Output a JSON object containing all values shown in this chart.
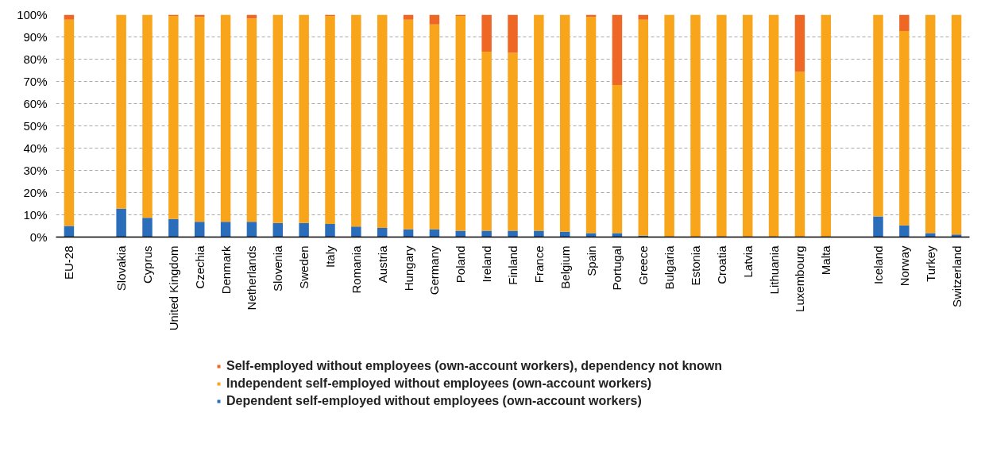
{
  "chart_data": {
    "type": "bar",
    "stacked": true,
    "categories": [
      "EU-28",
      null,
      "Slovakia",
      "Cyprus",
      "United Kingdom",
      "Czechia",
      "Denmark",
      "Netherlands",
      "Slovenia",
      "Sweden",
      "Italy",
      "Romania",
      "Austria",
      "Hungary",
      "Germany",
      "Poland",
      "Ireland",
      "Finland",
      "France",
      "Belgium",
      "Spain",
      "Portugal",
      "Greece",
      "Bulgaria",
      "Estonia",
      "Croatia",
      "Latvia",
      "Lithuania",
      "Luxembourg",
      "Malta",
      null,
      "Iceland",
      "Norway",
      "Turkey",
      "Switzerland"
    ],
    "series": [
      {
        "name": "Dependent self-employed without employees (own-account workers)",
        "color": "#2a6ebb",
        "values": [
          5.0,
          null,
          12.8,
          8.7,
          8.1,
          6.9,
          6.9,
          6.9,
          6.3,
          6.3,
          5.9,
          4.7,
          4.1,
          3.5,
          3.5,
          2.9,
          2.9,
          2.9,
          2.9,
          2.4,
          1.8,
          1.8,
          0.6,
          0,
          0,
          0,
          0,
          0,
          0,
          0,
          null,
          9.3,
          5.3,
          1.8,
          1.2
        ]
      },
      {
        "name": "Independent self-employed without employees (own-account workers)",
        "color": "#f8a51b",
        "values": [
          92.8,
          null,
          87.2,
          91.3,
          91.4,
          92.1,
          93.1,
          91.4,
          93.7,
          93.7,
          93.6,
          95.3,
          95.9,
          94.3,
          92.1,
          96.6,
          80.5,
          80.0,
          97.1,
          97.6,
          97.2,
          66.6,
          97.2,
          100,
          100,
          100,
          100,
          100,
          74.3,
          100,
          null,
          90.7,
          87.4,
          98.2,
          98.8
        ]
      },
      {
        "name": "Self-employed without employees (own-account workers), dependency not known",
        "color": "#ee6725",
        "values": [
          2.2,
          null,
          0,
          0,
          0.5,
          1.0,
          0,
          1.7,
          0,
          0,
          0.5,
          0,
          0,
          2.2,
          4.4,
          0.5,
          16.6,
          17.1,
          0,
          0,
          1.0,
          31.6,
          2.2,
          0,
          0,
          0,
          0,
          0,
          25.7,
          0,
          null,
          0,
          7.3,
          0,
          0
        ]
      }
    ],
    "ylim": [
      0,
      100
    ],
    "yticks": [
      {
        "value": 0,
        "label": "0%"
      },
      {
        "value": 10,
        "label": "10%"
      },
      {
        "value": 20,
        "label": "20%"
      },
      {
        "value": 30,
        "label": "30%"
      },
      {
        "value": 40,
        "label": "40%"
      },
      {
        "value": 50,
        "label": "50%"
      },
      {
        "value": 60,
        "label": "60%"
      },
      {
        "value": 70,
        "label": "70%"
      },
      {
        "value": 80,
        "label": "80%"
      },
      {
        "value": 90,
        "label": "90%"
      },
      {
        "value": 100,
        "label": "100%"
      }
    ],
    "grid": "y",
    "legend": "bottom"
  }
}
